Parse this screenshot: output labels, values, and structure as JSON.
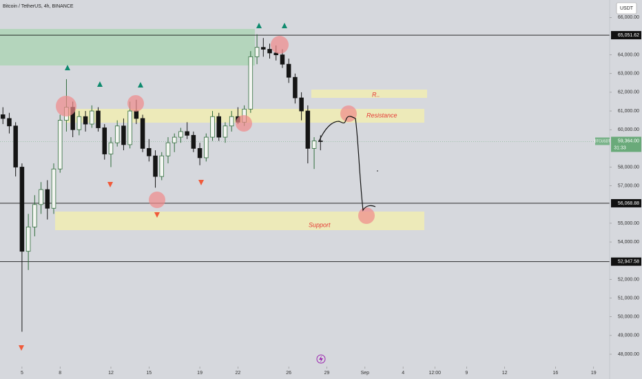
{
  "chart_data": {
    "type": "candlestick",
    "title": "Bitcoin / TetherUS, 4h, BINANCE",
    "currency": "USDT",
    "symbol": "BTCUSDT",
    "countdown": "31:33",
    "up_color": "#2e6b3a",
    "down_color": "#151515",
    "x": [
      3.5,
      4.0,
      4.5,
      5.0,
      5.5,
      6.0,
      6.5,
      7.0,
      7.5,
      8.0,
      8.5,
      9.0,
      9.5,
      10.0,
      10.5,
      11.0,
      11.5,
      12.0,
      12.5,
      13.0,
      13.5,
      14.0,
      14.5,
      15.0,
      15.5,
      16.0,
      16.5,
      17.0,
      17.5,
      18.0,
      18.5,
      19.0,
      19.5,
      20.0,
      20.5,
      21.0,
      21.5,
      22.0,
      22.5,
      23.0,
      23.5,
      24.0,
      24.5,
      25.0,
      25.5,
      26.0,
      26.5,
      27.0,
      27.5,
      28.0,
      28.5
    ],
    "open": [
      60800,
      60600,
      60200,
      58000,
      53500,
      54800,
      56000,
      56800,
      55800,
      57900,
      60500,
      61200,
      60000,
      60700,
      60300,
      61000,
      60100,
      58700,
      59300,
      60200,
      59200,
      61000,
      60600,
      59000,
      58600,
      57500,
      58600,
      59300,
      59600,
      59900,
      59700,
      59000,
      58500,
      59600,
      60700,
      59600,
      60200,
      60700,
      60400,
      61100,
      63900,
      64400,
      64300,
      64100,
      64000,
      63500,
      62800,
      61700,
      61000,
      59000,
      59400
    ],
    "high": [
      61200,
      60900,
      60400,
      58200,
      55500,
      56500,
      57200,
      57300,
      58200,
      60800,
      62700,
      61500,
      61000,
      61000,
      61300,
      61200,
      60300,
      59600,
      60500,
      60600,
      61500,
      61600,
      60800,
      59500,
      58900,
      58800,
      59600,
      59800,
      60100,
      60400,
      59900,
      59300,
      59800,
      61000,
      60900,
      60400,
      61000,
      61200,
      61300,
      64200,
      65100,
      64900,
      64600,
      64500,
      64300,
      63800,
      63000,
      62000,
      61300,
      59600,
      59700
    ],
    "low": [
      60300,
      59800,
      57500,
      49200,
      52500,
      54300,
      55500,
      55200,
      55500,
      57700,
      59900,
      59600,
      59700,
      59900,
      60100,
      59900,
      58400,
      58000,
      59100,
      58900,
      59000,
      60300,
      58800,
      58300,
      56900,
      57300,
      58200,
      58800,
      59300,
      59500,
      58800,
      58100,
      58300,
      59400,
      59400,
      59300,
      59900,
      60300,
      60200,
      60900,
      63500,
      63900,
      63800,
      63700,
      63300,
      62500,
      61400,
      60500,
      58200,
      57900,
      58900
    ],
    "close": [
      60600,
      60200,
      58000,
      53500,
      54800,
      56000,
      56800,
      55800,
      57900,
      60500,
      61200,
      60000,
      60700,
      60300,
      61000,
      60100,
      58700,
      59300,
      60200,
      59200,
      61000,
      60600,
      59000,
      58600,
      57500,
      58600,
      59300,
      59600,
      59900,
      59700,
      59000,
      58500,
      59600,
      60700,
      59600,
      60200,
      60700,
      60400,
      61100,
      63900,
      64400,
      64300,
      64100,
      64000,
      63500,
      62800,
      61700,
      61000,
      59000,
      59400,
      59364
    ],
    "xlim": [
      3.27,
      51.26
    ],
    "xticks": [
      5,
      8,
      12,
      15,
      19,
      22,
      26,
      29,
      {
        "value": 32,
        "label": "Sep"
      },
      {
        "value": 35,
        "label": "4"
      },
      {
        "value": 37.5,
        "label": "12:00"
      },
      {
        "value": 40,
        "label": "9"
      },
      {
        "value": 43,
        "label": "12"
      },
      {
        "value": 47,
        "label": "16"
      },
      {
        "value": 50,
        "label": "19"
      }
    ],
    "ylim": [
      47411,
      66932
    ],
    "yticks": [
      {
        "value": 48000,
        "label": "48,000.00"
      },
      {
        "value": 49000,
        "label": "49,000.00"
      },
      {
        "value": 50000,
        "label": "50,000.00"
      },
      {
        "value": 51000,
        "label": "51,000.00"
      },
      {
        "value": 52000,
        "label": "52,000.00"
      },
      {
        "value": 54000,
        "label": "54,000.00"
      },
      {
        "value": 55000,
        "label": "55,000.00"
      },
      {
        "value": 57000,
        "label": "57,000.00"
      },
      {
        "value": 58000,
        "label": "58,000.00"
      },
      {
        "value": 60000,
        "label": "60,000.00"
      },
      {
        "value": 61000,
        "label": "61,000.00"
      },
      {
        "value": 62000,
        "label": "62,000.00"
      },
      {
        "value": 63000,
        "label": "63,000.00"
      },
      {
        "value": 64000,
        "label": "64,000.00"
      },
      {
        "value": 66000,
        "label": "66,000.00"
      }
    ],
    "levels": [
      {
        "value": 65051.62,
        "label": "65,051.62"
      },
      {
        "value": 56068.88,
        "label": "56,068.88"
      },
      {
        "value": 52947.58,
        "label": "52,947.58"
      }
    ],
    "last_price": {
      "value": 59364,
      "label": "59,364.00"
    },
    "annotations": {
      "upper": "R..",
      "resistance": "Resistance",
      "support": "Support"
    },
    "grid": false
  }
}
